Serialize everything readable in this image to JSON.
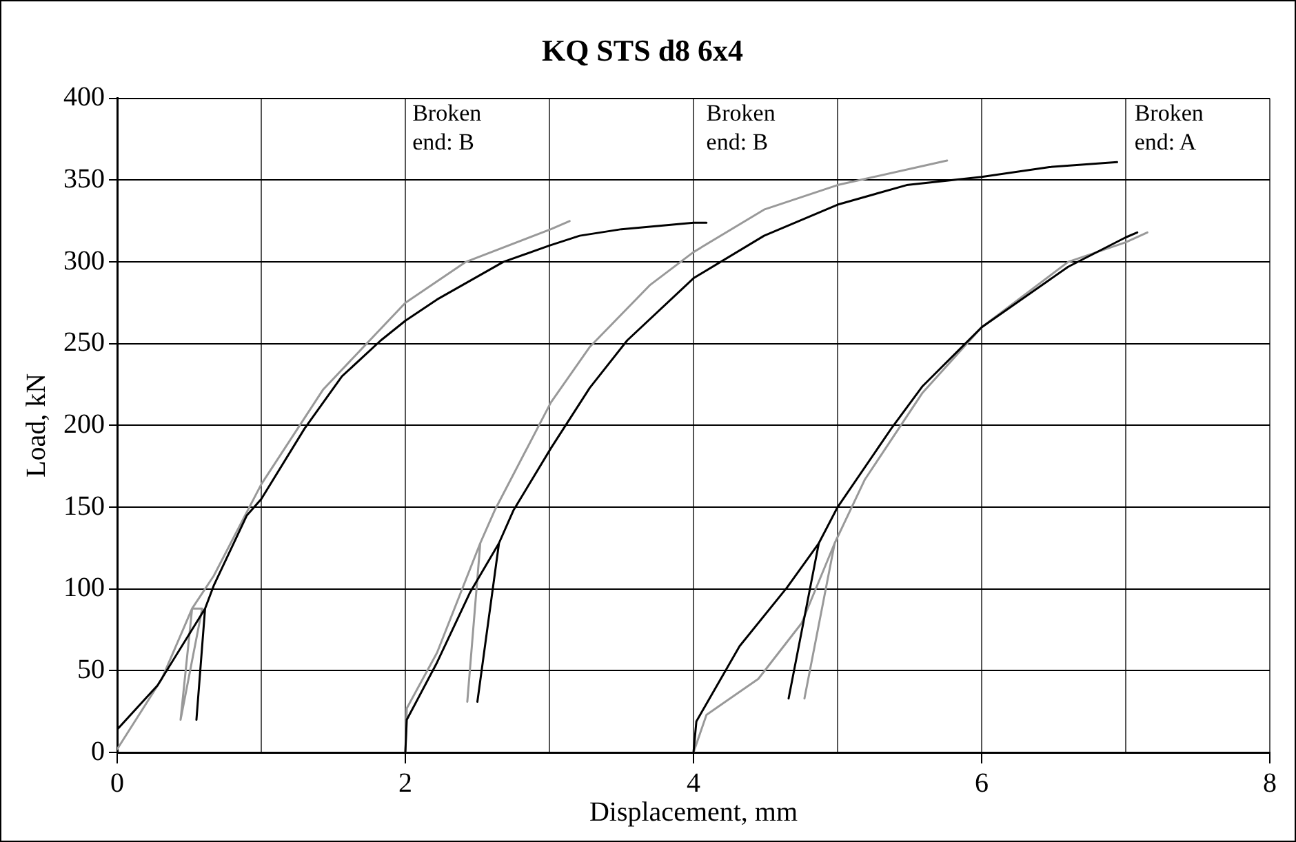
{
  "chart_data": {
    "type": "line",
    "title": "KQ STS d8 6x4",
    "xlabel": "Displacement, mm",
    "ylabel": "Load, kN",
    "xlim": [
      0,
      8
    ],
    "xticks": [
      0,
      {
        "value": 1,
        "label": null
      },
      2,
      {
        "value": 3,
        "label": null
      },
      4,
      {
        "value": 5,
        "label": null
      },
      6,
      {
        "value": 7,
        "label": null
      },
      8
    ],
    "ylim": [
      0,
      400
    ],
    "yticks": [
      0,
      50,
      100,
      150,
      200,
      250,
      300,
      350,
      400
    ],
    "grid": true,
    "legend": false,
    "marker": "none",
    "line_style": "solid",
    "series": [
      {
        "color": "#000000",
        "x": [
          0,
          0.28,
          0.61,
          0.55,
          0.61,
          0.67,
          0.9,
          1.0,
          1.3,
          1.56,
          1.83,
          2.0,
          2.22,
          2.68,
          3.0,
          3.21,
          3.5,
          4.0,
          4.09
        ],
        "values": [
          14,
          41,
          88,
          20,
          88,
          102,
          145,
          155,
          198,
          230,
          252,
          264,
          277,
          300,
          310,
          316,
          320,
          324,
          324
        ]
      },
      {
        "color": "#999999",
        "x": [
          0,
          0.31,
          0.52,
          0.59,
          0.44,
          0.52,
          0.67,
          1.0,
          1.43,
          2.0,
          2.42,
          3.01,
          3.14
        ],
        "values": [
          2,
          45,
          88,
          88,
          20,
          88,
          108,
          164,
          222,
          275,
          300,
          320,
          325
        ]
      },
      {
        "color": "#000000",
        "x": [
          2,
          2.01,
          2.22,
          2.45,
          2.65,
          2.5,
          2.65,
          2.75,
          3.01,
          3.28,
          3.54,
          4.0,
          4.49,
          5.0,
          5.48,
          6.0,
          6.47,
          6.94
        ],
        "values": [
          0,
          20,
          55,
          98,
          128,
          31,
          128,
          148,
          186,
          223,
          252,
          290,
          316,
          335,
          347,
          352,
          358,
          361
        ]
      },
      {
        "color": "#999999",
        "x": [
          2,
          2.01,
          2.22,
          2.52,
          2.43,
          2.52,
          2.62,
          3.01,
          3.28,
          3.7,
          4.0,
          4.49,
          5.0,
          5.76
        ],
        "values": [
          0,
          27,
          61,
          128,
          31,
          128,
          148,
          214,
          248,
          286,
          306,
          332,
          347,
          362
        ]
      },
      {
        "color": "#000000",
        "x": [
          4,
          4.02,
          4.32,
          4.65,
          4.87,
          4.66,
          4.87,
          5.0,
          5.38,
          5.59,
          6.0,
          6.6,
          7.0,
          7.08
        ],
        "values": [
          0,
          19,
          65,
          101,
          128,
          33,
          128,
          150,
          199,
          224,
          260,
          297,
          315,
          318
        ]
      },
      {
        "color": "#999999",
        "x": [
          4,
          4.09,
          4.45,
          4.75,
          4.98,
          4.77,
          4.98,
          5.19,
          5.59,
          6.0,
          6.6,
          7.0,
          7.15
        ],
        "values": [
          0,
          23,
          45,
          79,
          128,
          33,
          128,
          167,
          220,
          260,
          300,
          312,
          318
        ]
      }
    ],
    "annotations": [
      "Broken\nend: B",
      "Broken\nend: B",
      "Broken\nend: A"
    ]
  }
}
